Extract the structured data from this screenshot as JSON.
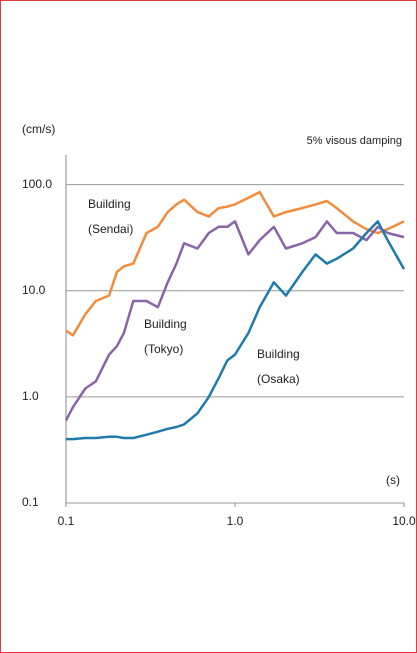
{
  "chart_data": {
    "type": "line",
    "y_unit": "(cm/s)",
    "x_unit": "(s)",
    "subtitle": "5% visous damping",
    "log_x": true,
    "log_y": true,
    "grid": true,
    "xlim": [
      0.1,
      10
    ],
    "ylim": [
      0.1,
      190
    ],
    "xticks": [
      0.1,
      {
        "value": 1,
        "label": "1.0"
      },
      {
        "value": 10,
        "label": "10.0"
      }
    ],
    "yticks": [
      0.1,
      {
        "value": 1,
        "label": "1.0"
      },
      {
        "value": 10,
        "label": "10.0"
      },
      {
        "value": 100,
        "label": "100.0"
      }
    ],
    "x": [
      0.1,
      0.11,
      0.13,
      0.15,
      0.18,
      0.2,
      0.22,
      0.25,
      0.3,
      0.35,
      0.4,
      0.45,
      0.5,
      0.6,
      0.7,
      0.8,
      0.9,
      1.0,
      1.2,
      1.4,
      1.7,
      2.0,
      2.5,
      3.0,
      3.5,
      4.0,
      5.0,
      6.0,
      7.0,
      8.0,
      10.0
    ],
    "series": [
      {
        "name": [
          "Building",
          "(Sendai)"
        ],
        "color": "#f28c3c",
        "values": [
          4.2,
          3.8,
          6,
          8,
          9,
          15,
          17,
          18,
          35,
          40,
          55,
          65,
          72,
          55,
          50,
          60,
          62,
          65,
          75,
          85,
          50,
          55,
          60,
          65,
          70,
          60,
          45,
          38,
          35,
          38,
          45
        ]
      },
      {
        "name": [
          "Building",
          "(Tokyo)"
        ],
        "color": "#8a64a8",
        "values": [
          0.6,
          0.8,
          1.2,
          1.4,
          2.5,
          3,
          4,
          8,
          8,
          7,
          12,
          18,
          28,
          25,
          35,
          40,
          40,
          45,
          22,
          30,
          40,
          25,
          28,
          32,
          45,
          35,
          35,
          30,
          40,
          35,
          32
        ]
      },
      {
        "name": [
          "Building",
          "(Osaka)"
        ],
        "color": "#1f7bab",
        "values": [
          0.4,
          0.4,
          0.41,
          0.41,
          0.42,
          0.42,
          0.41,
          0.41,
          0.44,
          0.47,
          0.5,
          0.52,
          0.55,
          0.7,
          1,
          1.5,
          2.2,
          2.5,
          4,
          7,
          12,
          9,
          15,
          22,
          18,
          20,
          25,
          35,
          45,
          30,
          16
        ]
      }
    ]
  }
}
